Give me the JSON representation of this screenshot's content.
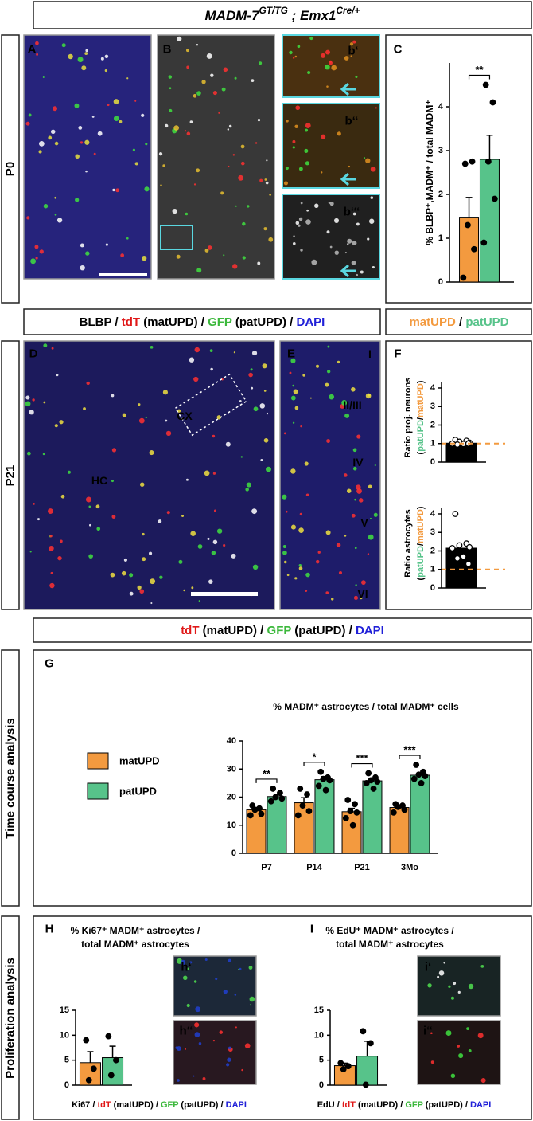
{
  "figure": {
    "title": [
      {
        "text": "MADM-7"
      },
      {
        "text": "GT/TG",
        "sup": true
      },
      {
        "text": " ; "
      },
      {
        "text": "Emx1"
      },
      {
        "text": "Cre/+",
        "sup": true
      }
    ],
    "rows": [
      "P0",
      "P21",
      "Time course analysis",
      "Proliferation analysis"
    ],
    "panels": [
      "A",
      "B",
      "b‘",
      "b‘‘",
      "b‘‘‘",
      "C",
      "D",
      "E",
      "F",
      "G",
      "H",
      "h‘",
      "h‘‘",
      "I",
      "i‘",
      "i‘‘"
    ],
    "regions": [
      "CX",
      "HC",
      "I",
      "II/III",
      "IV",
      "V",
      "VI"
    ],
    "captions": [
      [
        {
          "text": "BLBP"
        },
        {
          "text": " / "
        },
        {
          "text": "tdT",
          "color": "#e01818"
        },
        {
          "text": " (matUPD) / "
        },
        {
          "text": "GFP",
          "color": "#3cb83c"
        },
        {
          "text": " (patUPD) / "
        },
        {
          "text": "DAPI",
          "color": "#2020d8"
        }
      ],
      [
        {
          "text": "tdT",
          "color": "#e01818"
        },
        {
          "text": " (matUPD) / "
        },
        {
          "text": "GFP",
          "color": "#3cb83c"
        },
        {
          "text": " (patUPD) / "
        },
        {
          "text": "DAPI",
          "color": "#2020d8"
        }
      ],
      [
        {
          "text": "Ki67"
        },
        {
          "text": " / "
        },
        {
          "text": "tdT",
          "color": "#e01818"
        },
        {
          "text": " (matUPD) / "
        },
        {
          "text": "GFP",
          "color": "#3cb83c"
        },
        {
          "text": " (patUPD) / "
        },
        {
          "text": "DAPI",
          "color": "#2020d8"
        }
      ],
      [
        {
          "text": "EdU"
        },
        {
          "text": " / "
        },
        {
          "text": "tdT",
          "color": "#e01818"
        },
        {
          "text": " (matUPD) / "
        },
        {
          "text": "GFP",
          "color": "#3cb83c"
        },
        {
          "text": " (patUPD) / "
        },
        {
          "text": "DAPI",
          "color": "#2020d8"
        }
      ]
    ]
  },
  "chart_data": [
    {
      "type": "bar",
      "categories": [
        null
      ],
      "y_label": "% BLBP⁺,MADM⁺ / total MADM⁺",
      "ylim": [
        0,
        5
      ],
      "yticks": [
        0,
        1,
        2,
        3,
        4
      ],
      "series": [
        {
          "name": "matUPD",
          "color": "#f39a3f",
          "values": [
            1.48
          ],
          "errors": [
            0.45
          ],
          "points": [
            [
              2.7,
              2.75,
              1.3,
              0.75,
              0.1
            ]
          ]
        },
        {
          "name": "patUPD",
          "color": "#57c38a",
          "values": [
            2.8
          ],
          "errors": [
            0.55
          ],
          "points": [
            [
              4.5,
              4.1,
              2.75,
              1.9,
              0.9
            ]
          ]
        }
      ],
      "annotations": [
        "**"
      ]
    },
    {
      "type": "bar",
      "categories": [
        null
      ],
      "y_label": [
        [
          {
            "text": "Ratio proj. neurons"
          }
        ],
        [
          {
            "text": "("
          },
          {
            "text": "patUPD",
            "color": "#57c38a"
          },
          {
            "text": "/"
          },
          {
            "text": "matUPD",
            "color": "#f39a3f"
          },
          {
            "text": ")"
          }
        ]
      ],
      "ylim": [
        0,
        4.3
      ],
      "yticks": [
        0,
        1,
        2,
        3,
        4
      ],
      "reference_line": 1,
      "series": [
        {
          "color": "#000000",
          "values": [
            1.02
          ],
          "points": [
            [
              1.2,
              1.15,
              1.1,
              1.05,
              1.0,
              0.98,
              0.95,
              1.0
            ]
          ]
        }
      ]
    },
    {
      "type": "bar",
      "categories": [
        null
      ],
      "y_label": [
        [
          {
            "text": "Ratio astrocytes"
          }
        ],
        [
          {
            "text": "("
          },
          {
            "text": "patUPD",
            "color": "#57c38a"
          },
          {
            "text": "/"
          },
          {
            "text": "matUPD",
            "color": "#f39a3f"
          },
          {
            "text": ")"
          }
        ]
      ],
      "ylim": [
        0,
        4.3
      ],
      "yticks": [
        0,
        1,
        2,
        3,
        4
      ],
      "reference_line": 1,
      "series": [
        {
          "color": "#000000",
          "values": [
            2.15
          ],
          "points": [
            [
              4.0,
              2.4,
              2.3,
              2.2,
              2.15,
              1.7,
              1.6,
              1.3
            ]
          ]
        }
      ]
    },
    {
      "type": "bar",
      "title": [
        "% MADM⁺ astrocytes / total MADM⁺ cells"
      ],
      "categories": [
        "P7",
        "P14",
        "P21",
        "3Mo"
      ],
      "ylim": [
        0,
        40
      ],
      "yticks": [
        0,
        10,
        20,
        30,
        40
      ],
      "legend": "left",
      "series": [
        {
          "name": "matUPD",
          "color": "#f39a3f",
          "values": [
            15.5,
            18,
            14.8,
            16.3
          ],
          "errors": [
            0.8,
            1.8,
            1.2,
            0.8
          ],
          "points": [
            [
              17,
              16,
              15.5,
              14,
              13.5
            ],
            [
              23,
              21,
              17,
              15,
              13.5
            ],
            [
              19,
              17.5,
              15,
              14.5,
              12.5,
              10
            ],
            [
              17.5,
              17,
              16.5,
              15.5,
              14.5
            ]
          ]
        },
        {
          "name": "patUPD",
          "color": "#57c38a",
          "values": [
            20.2,
            26.2,
            25.8,
            27.8
          ],
          "errors": [
            0.8,
            1.1,
            0.7,
            0.8
          ],
          "points": [
            [
              23,
              21.5,
              20,
              19.5,
              18.5
            ],
            [
              29,
              27,
              26.5,
              26,
              24,
              22.5
            ],
            [
              28.5,
              27,
              26,
              25.5,
              25,
              23
            ],
            [
              31.5,
              29,
              28,
              27.5,
              26.5,
              25
            ]
          ]
        }
      ],
      "annotations": [
        "**",
        "*",
        "***",
        "***"
      ]
    },
    {
      "type": "bar",
      "title": [
        "% Ki67⁺ MADM⁺ astrocytes /",
        "total MADM⁺ astrocytes"
      ],
      "categories": [
        null
      ],
      "ylim": [
        0,
        15
      ],
      "yticks": [
        0,
        5,
        10,
        15
      ],
      "series": [
        {
          "color": "#f39a3f",
          "values": [
            4.5
          ],
          "errors": [
            2.2
          ],
          "points": [
            [
              9,
              3.3,
              1
            ]
          ]
        },
        {
          "color": "#57c38a",
          "values": [
            5.5
          ],
          "errors": [
            2.3
          ],
          "points": [
            [
              9.8,
              5,
              2
            ]
          ]
        }
      ]
    },
    {
      "type": "bar",
      "title": [
        "% EdU⁺ MADM⁺ astrocytes /",
        "total MADM⁺ astrocytes"
      ],
      "categories": [
        null
      ],
      "ylim": [
        0,
        15
      ],
      "yticks": [
        0,
        5,
        10,
        15
      ],
      "series": [
        {
          "color": "#f39a3f",
          "values": [
            3.9
          ],
          "errors": [
            0.5
          ],
          "points": [
            [
              4.4,
              3.8,
              3.2
            ]
          ]
        },
        {
          "color": "#57c38a",
          "values": [
            5.8
          ],
          "errors": [
            3
          ],
          "points": [
            [
              10.8,
              8.4,
              0.1
            ]
          ]
        }
      ]
    }
  ]
}
